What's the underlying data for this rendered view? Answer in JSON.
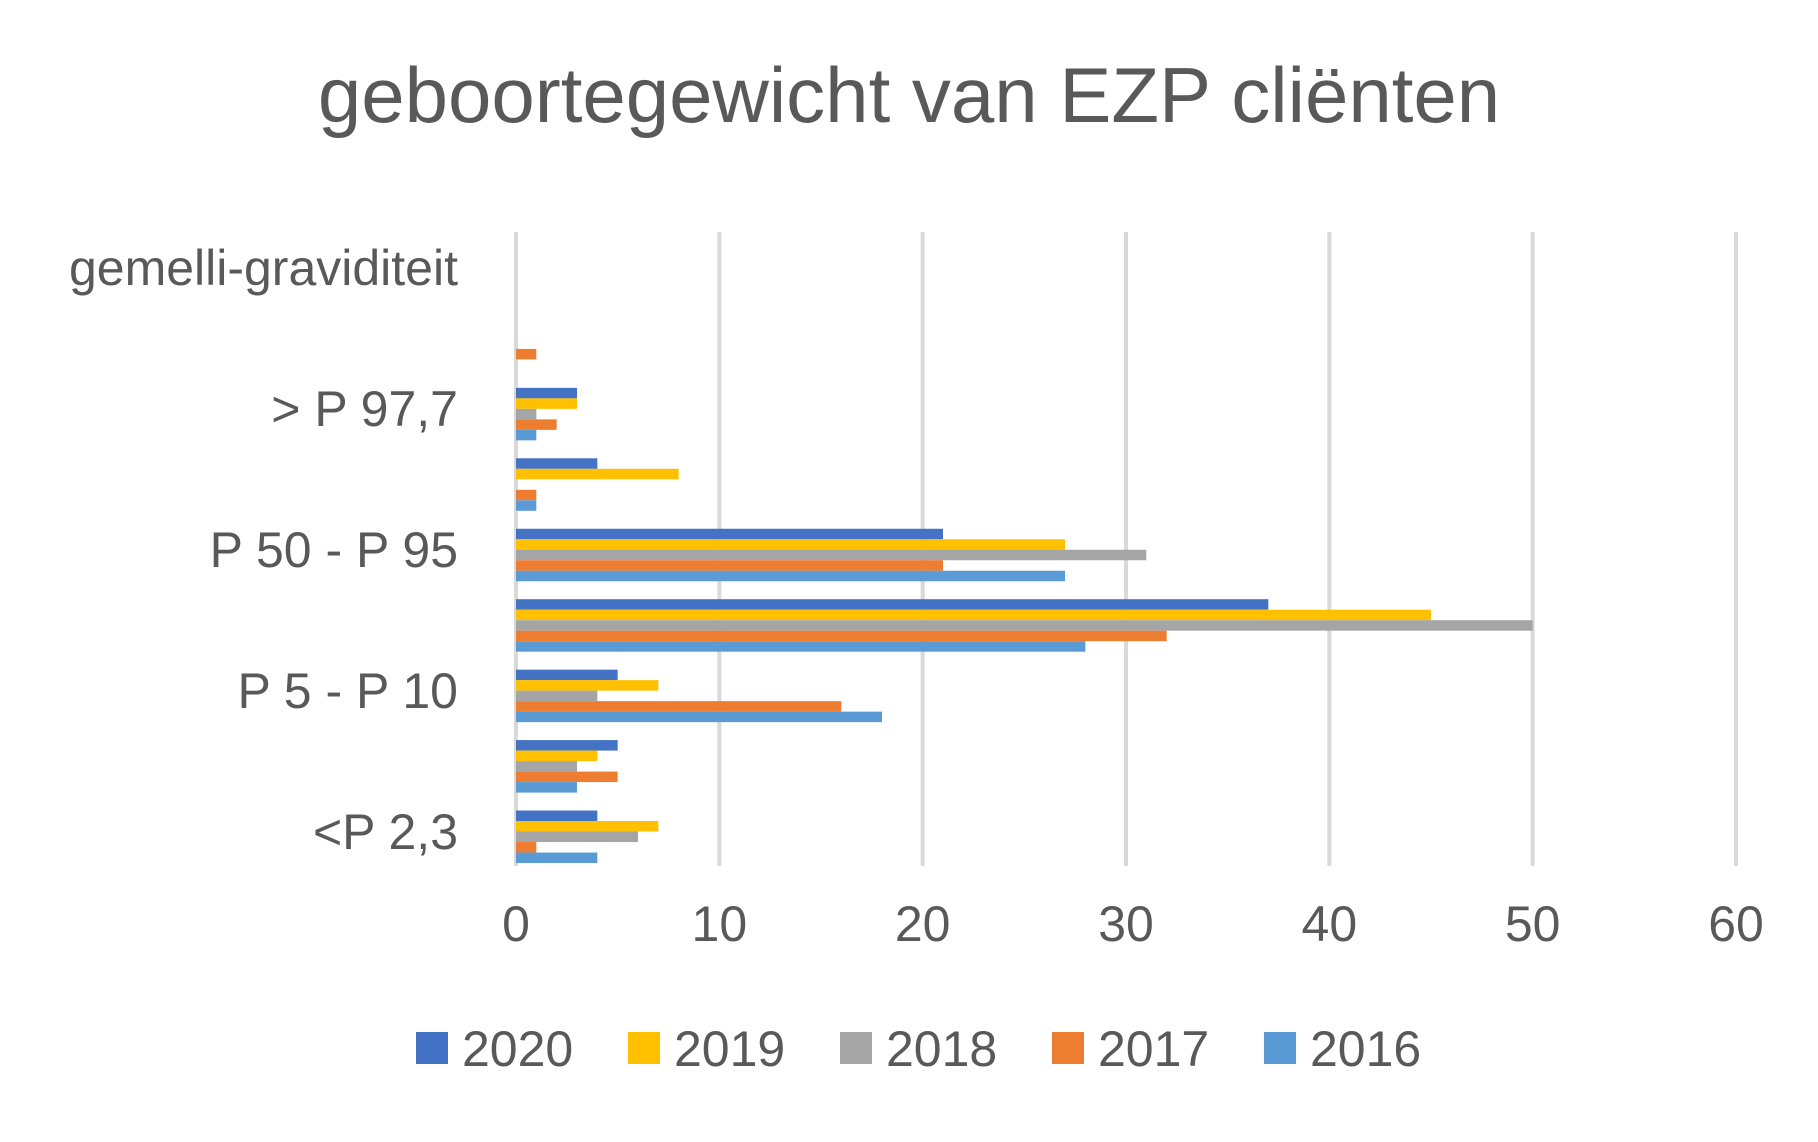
{
  "chart_data": {
    "type": "bar",
    "orientation": "horizontal",
    "title": "geboortegewicht van EZP cliënten",
    "xlabel": "",
    "ylabel": "",
    "xlim": [
      0,
      60
    ],
    "x_ticks": [
      0,
      10,
      20,
      30,
      40,
      50,
      60
    ],
    "grid": "vertical",
    "legend_position": "bottom",
    "categories": [
      "<P 2,3",
      "",
      "P 5 - P 10",
      "",
      "P 50 - P 95",
      "",
      "> P 97,7",
      "",
      "gemelli-graviditeit"
    ],
    "category_labels_shown": [
      "<P 2,3",
      "P 5 - P 10",
      "P 50 - P 95",
      "> P 97,7",
      "gemelli-graviditeit"
    ],
    "series": [
      {
        "name": "2020",
        "color": "#4472C4",
        "values": [
          4,
          5,
          5,
          37,
          21,
          4,
          3,
          0,
          0
        ]
      },
      {
        "name": "2019",
        "color": "#FFC000",
        "values": [
          7,
          4,
          7,
          45,
          27,
          8,
          3,
          0,
          0
        ]
      },
      {
        "name": "2018",
        "color": "#A5A5A5",
        "values": [
          6,
          3,
          4,
          50,
          31,
          0,
          1,
          0,
          0
        ]
      },
      {
        "name": "2017",
        "color": "#ED7D31",
        "values": [
          1,
          5,
          16,
          32,
          21,
          1,
          2,
          1,
          0
        ]
      },
      {
        "name": "2016",
        "color": "#5B9BD5",
        "values": [
          4,
          3,
          18,
          28,
          27,
          1,
          1,
          0,
          0
        ]
      }
    ]
  }
}
